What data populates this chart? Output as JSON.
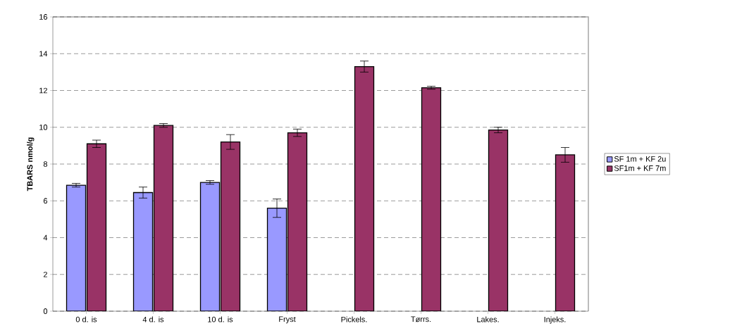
{
  "chart_data": {
    "type": "bar",
    "ylabel": "TBARS nmol/g",
    "categories": [
      "0 d. is",
      "4 d. is",
      "10 d. is",
      "Fryst",
      "Pickels.",
      "Tørrs.",
      "Lakes.",
      "Injeks."
    ],
    "series": [
      {
        "name": "SF 1m + KF 2u",
        "color": "#9999ff",
        "values": [
          6.85,
          6.45,
          7.0,
          5.6,
          null,
          null,
          null,
          null
        ],
        "errors": [
          0.1,
          0.3,
          0.1,
          0.5,
          null,
          null,
          null,
          null
        ]
      },
      {
        "name": "SF1m + KF 7m",
        "color": "#993366",
        "values": [
          9.1,
          10.1,
          9.2,
          9.7,
          13.3,
          12.15,
          9.85,
          8.5
        ],
        "errors": [
          0.2,
          0.1,
          0.4,
          0.2,
          0.3,
          0.08,
          0.15,
          0.4
        ]
      }
    ],
    "ylim": [
      0,
      16
    ],
    "yticks": [
      0,
      2,
      4,
      6,
      8,
      10,
      12,
      14,
      16
    ],
    "grid": "y",
    "legend": "right"
  }
}
